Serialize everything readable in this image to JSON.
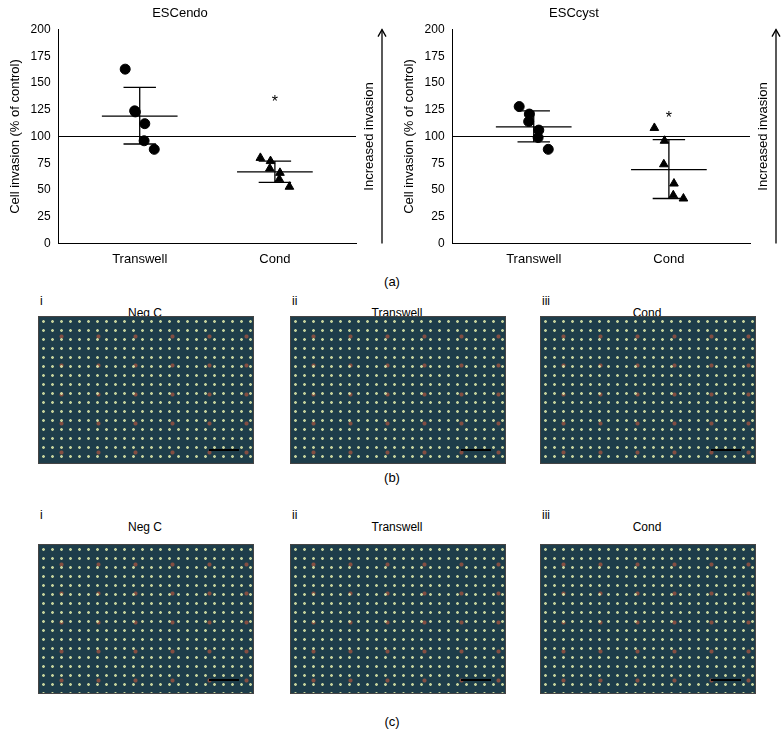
{
  "chart_data": [
    {
      "type": "scatter",
      "title": "ESCendo",
      "y_label": "Cell invasion (% of control)",
      "side_label": "Increased invasion",
      "categories": [
        "Transwell",
        "Cond"
      ],
      "groups": [
        {
          "values": [
            163,
            123,
            124,
            112,
            96,
            88
          ],
          "mean": 119,
          "error_low": 93,
          "error_high": 146,
          "marker": "circle",
          "color": "#000000"
        },
        {
          "values": [
            80,
            77,
            70,
            66,
            60,
            53
          ],
          "mean": 67,
          "error_low": 57,
          "error_high": 77,
          "marker": "triangle",
          "color": "#000000"
        }
      ],
      "reference_line": 100,
      "annotations": [
        {
          "text": "*",
          "category": "Cond",
          "y": 132
        }
      ],
      "ylim": [
        0,
        200
      ],
      "yticks": [
        0,
        25,
        50,
        75,
        100,
        125,
        150,
        175,
        200
      ],
      "grid": false
    },
    {
      "type": "scatter",
      "title": "ESCcyst",
      "y_label": "Cell invasion (% of control)",
      "side_label": "Increased invasion",
      "categories": [
        "Transwell",
        "Cond"
      ],
      "groups": [
        {
          "values": [
            128,
            121,
            114,
            106,
            99,
            88
          ],
          "mean": 109,
          "error_low": 95,
          "error_high": 124,
          "marker": "circle",
          "color": "#000000"
        },
        {
          "values": [
            108,
            96,
            74,
            56,
            45,
            42
          ],
          "mean": 69,
          "error_low": 42,
          "error_high": 97,
          "marker": "triangle",
          "color": "#000000"
        }
      ],
      "reference_line": 100,
      "annotations": [
        {
          "text": "*",
          "category": "Cond",
          "y": 117
        }
      ],
      "ylim": [
        0,
        200
      ],
      "yticks": [
        0,
        25,
        50,
        75,
        100,
        125,
        150,
        175,
        200
      ],
      "grid": false
    }
  ],
  "panel_a_label": "(a)",
  "image_panels": [
    {
      "label": "(b)",
      "images": [
        {
          "numeral": "i",
          "title": "Neg C"
        },
        {
          "numeral": "ii",
          "title": "Transwell"
        },
        {
          "numeral": "iii",
          "title": "Cond"
        }
      ]
    },
    {
      "label": "(c)",
      "images": [
        {
          "numeral": "i",
          "title": "Neg C"
        },
        {
          "numeral": "ii",
          "title": "Transwell"
        },
        {
          "numeral": "iii",
          "title": "Cond"
        }
      ]
    }
  ]
}
